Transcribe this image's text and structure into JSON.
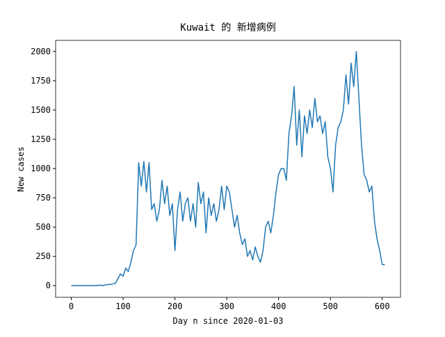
{
  "chart_data": {
    "type": "line",
    "title": "Kuwait 的 新增病例",
    "x_label": "Day n since 2020-01-03",
    "y_label": "New cases",
    "x": [
      0,
      5,
      10,
      15,
      20,
      25,
      30,
      35,
      40,
      45,
      50,
      55,
      60,
      65,
      70,
      75,
      80,
      85,
      90,
      95,
      100,
      105,
      110,
      115,
      120,
      125,
      130,
      135,
      140,
      145,
      150,
      155,
      160,
      165,
      170,
      175,
      180,
      185,
      190,
      195,
      200,
      205,
      210,
      215,
      220,
      225,
      230,
      235,
      240,
      245,
      250,
      255,
      260,
      265,
      270,
      275,
      280,
      285,
      290,
      295,
      300,
      305,
      310,
      315,
      320,
      325,
      330,
      335,
      340,
      345,
      350,
      355,
      360,
      365,
      370,
      375,
      380,
      385,
      390,
      395,
      400,
      405,
      410,
      415,
      420,
      425,
      430,
      435,
      440,
      445,
      450,
      455,
      460,
      465,
      470,
      475,
      480,
      485,
      490,
      495,
      500,
      505,
      510,
      515,
      520,
      525,
      530,
      535,
      540,
      545,
      550,
      555,
      560,
      565,
      570,
      575,
      580,
      585,
      590,
      595,
      600,
      605
    ],
    "series": [
      {
        "name": "New cases",
        "color": "#1f77b4",
        "values": [
          0,
          0,
          0,
          0,
          0,
          0,
          0,
          0,
          0,
          0,
          0,
          5,
          0,
          5,
          10,
          10,
          15,
          20,
          60,
          100,
          80,
          150,
          120,
          200,
          300,
          350,
          1050,
          850,
          1060,
          800,
          1050,
          650,
          700,
          550,
          650,
          900,
          700,
          850,
          600,
          700,
          300,
          650,
          800,
          550,
          700,
          750,
          550,
          700,
          500,
          880,
          700,
          800,
          450,
          750,
          600,
          700,
          550,
          650,
          850,
          650,
          850,
          800,
          650,
          500,
          600,
          450,
          350,
          400,
          250,
          300,
          220,
          330,
          250,
          200,
          300,
          500,
          550,
          450,
          600,
          800,
          950,
          1000,
          1000,
          900,
          1300,
          1450,
          1700,
          1200,
          1500,
          1100,
          1450,
          1300,
          1500,
          1350,
          1600,
          1400,
          1450,
          1300,
          1400,
          1100,
          1000,
          800,
          1200,
          1350,
          1400,
          1500,
          1800,
          1550,
          1900,
          1700,
          2000,
          1600,
          1200,
          950,
          900,
          800,
          850,
          550,
          400,
          300,
          180,
          180
        ]
      }
    ],
    "xlim": [
      -30.25,
      635.25
    ],
    "ylim": [
      -99.75,
      2094.75
    ],
    "xticks": [
      0,
      100,
      200,
      300,
      400,
      500,
      600
    ],
    "yticks": [
      0,
      250,
      500,
      750,
      1000,
      1250,
      1500,
      1750,
      2000
    ]
  }
}
